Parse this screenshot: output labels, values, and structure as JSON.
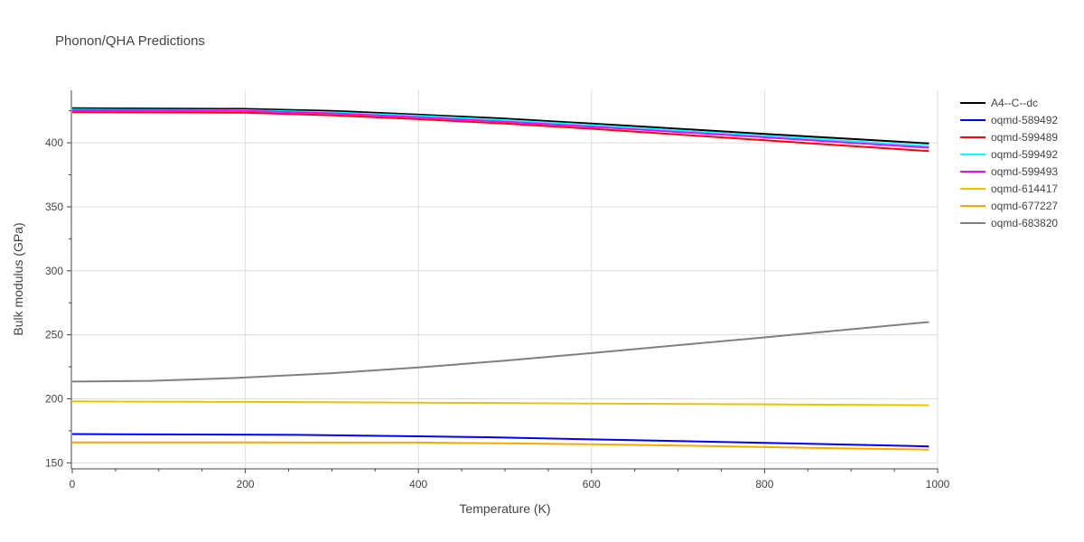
{
  "chart_data": {
    "type": "line",
    "title": "Phonon/QHA Predictions",
    "xlabel": "Temperature (K)",
    "ylabel": "Bulk modulus (GPa)",
    "xlim": [
      0,
      1000
    ],
    "ylim": [
      146,
      441
    ],
    "xticks": [
      0,
      200,
      400,
      600,
      800,
      1000
    ],
    "yticks": [
      150,
      200,
      250,
      300,
      350,
      400
    ],
    "grid": true,
    "legend_position": "top-right",
    "series": [
      {
        "name": "A4--C--dc",
        "color": "#000000",
        "x": [
          0,
          200,
          300,
          400,
          500,
          600,
          700,
          800,
          900,
          990
        ],
        "y": [
          427,
          426.5,
          425,
          422,
          419,
          415,
          411,
          407,
          403,
          399.5
        ]
      },
      {
        "name": "oqmd-589492",
        "color": "#0000ff",
        "x": [
          0,
          100,
          260,
          400,
          480,
          600,
          700,
          800,
          900,
          990
        ],
        "y": [
          172.5,
          172.2,
          171.8,
          170.7,
          170,
          168.3,
          167,
          165.6,
          164.2,
          162.8
        ]
      },
      {
        "name": "oqmd-599489",
        "color": "#ff0000",
        "x": [
          0,
          200,
          300,
          400,
          500,
          600,
          700,
          800,
          900,
          990
        ],
        "y": [
          424,
          423.5,
          421.5,
          418.5,
          415,
          411,
          406.5,
          402,
          397.5,
          393.5
        ]
      },
      {
        "name": "oqmd-599492",
        "color": "#00ffff",
        "x": [
          0,
          200,
          300,
          400,
          500,
          600,
          700,
          800,
          900,
          990
        ],
        "y": [
          426,
          425.5,
          423.8,
          421,
          417.7,
          413.8,
          409.7,
          405.5,
          401.3,
          397.5
        ]
      },
      {
        "name": "oqmd-599493",
        "color": "#ff00ff",
        "x": [
          0,
          200,
          300,
          400,
          500,
          600,
          700,
          800,
          900,
          990
        ],
        "y": [
          425.5,
          425,
          423,
          420,
          416.5,
          412.6,
          408.5,
          404.3,
          400,
          396.2
        ]
      },
      {
        "name": "oqmd-614417",
        "color": "#ebc300",
        "x": [
          0,
          200,
          400,
          600,
          800,
          990
        ],
        "y": [
          198,
          197.6,
          197,
          196.3,
          195.7,
          195
        ]
      },
      {
        "name": "oqmd-677227",
        "color": "#ffa500",
        "x": [
          0,
          200,
          400,
          500,
          600,
          700,
          800,
          900,
          990
        ],
        "y": [
          166,
          165.9,
          165.8,
          165.2,
          164.5,
          163.5,
          162.3,
          161.2,
          160.3
        ]
      },
      {
        "name": "oqmd-683820",
        "color": "#808080",
        "x": [
          0,
          90,
          180,
          300,
          400,
          500,
          600,
          700,
          800,
          900,
          990
        ],
        "y": [
          213.5,
          214,
          216,
          220,
          224.5,
          229.8,
          235.7,
          241.9,
          248,
          254.3,
          260
        ]
      }
    ]
  }
}
